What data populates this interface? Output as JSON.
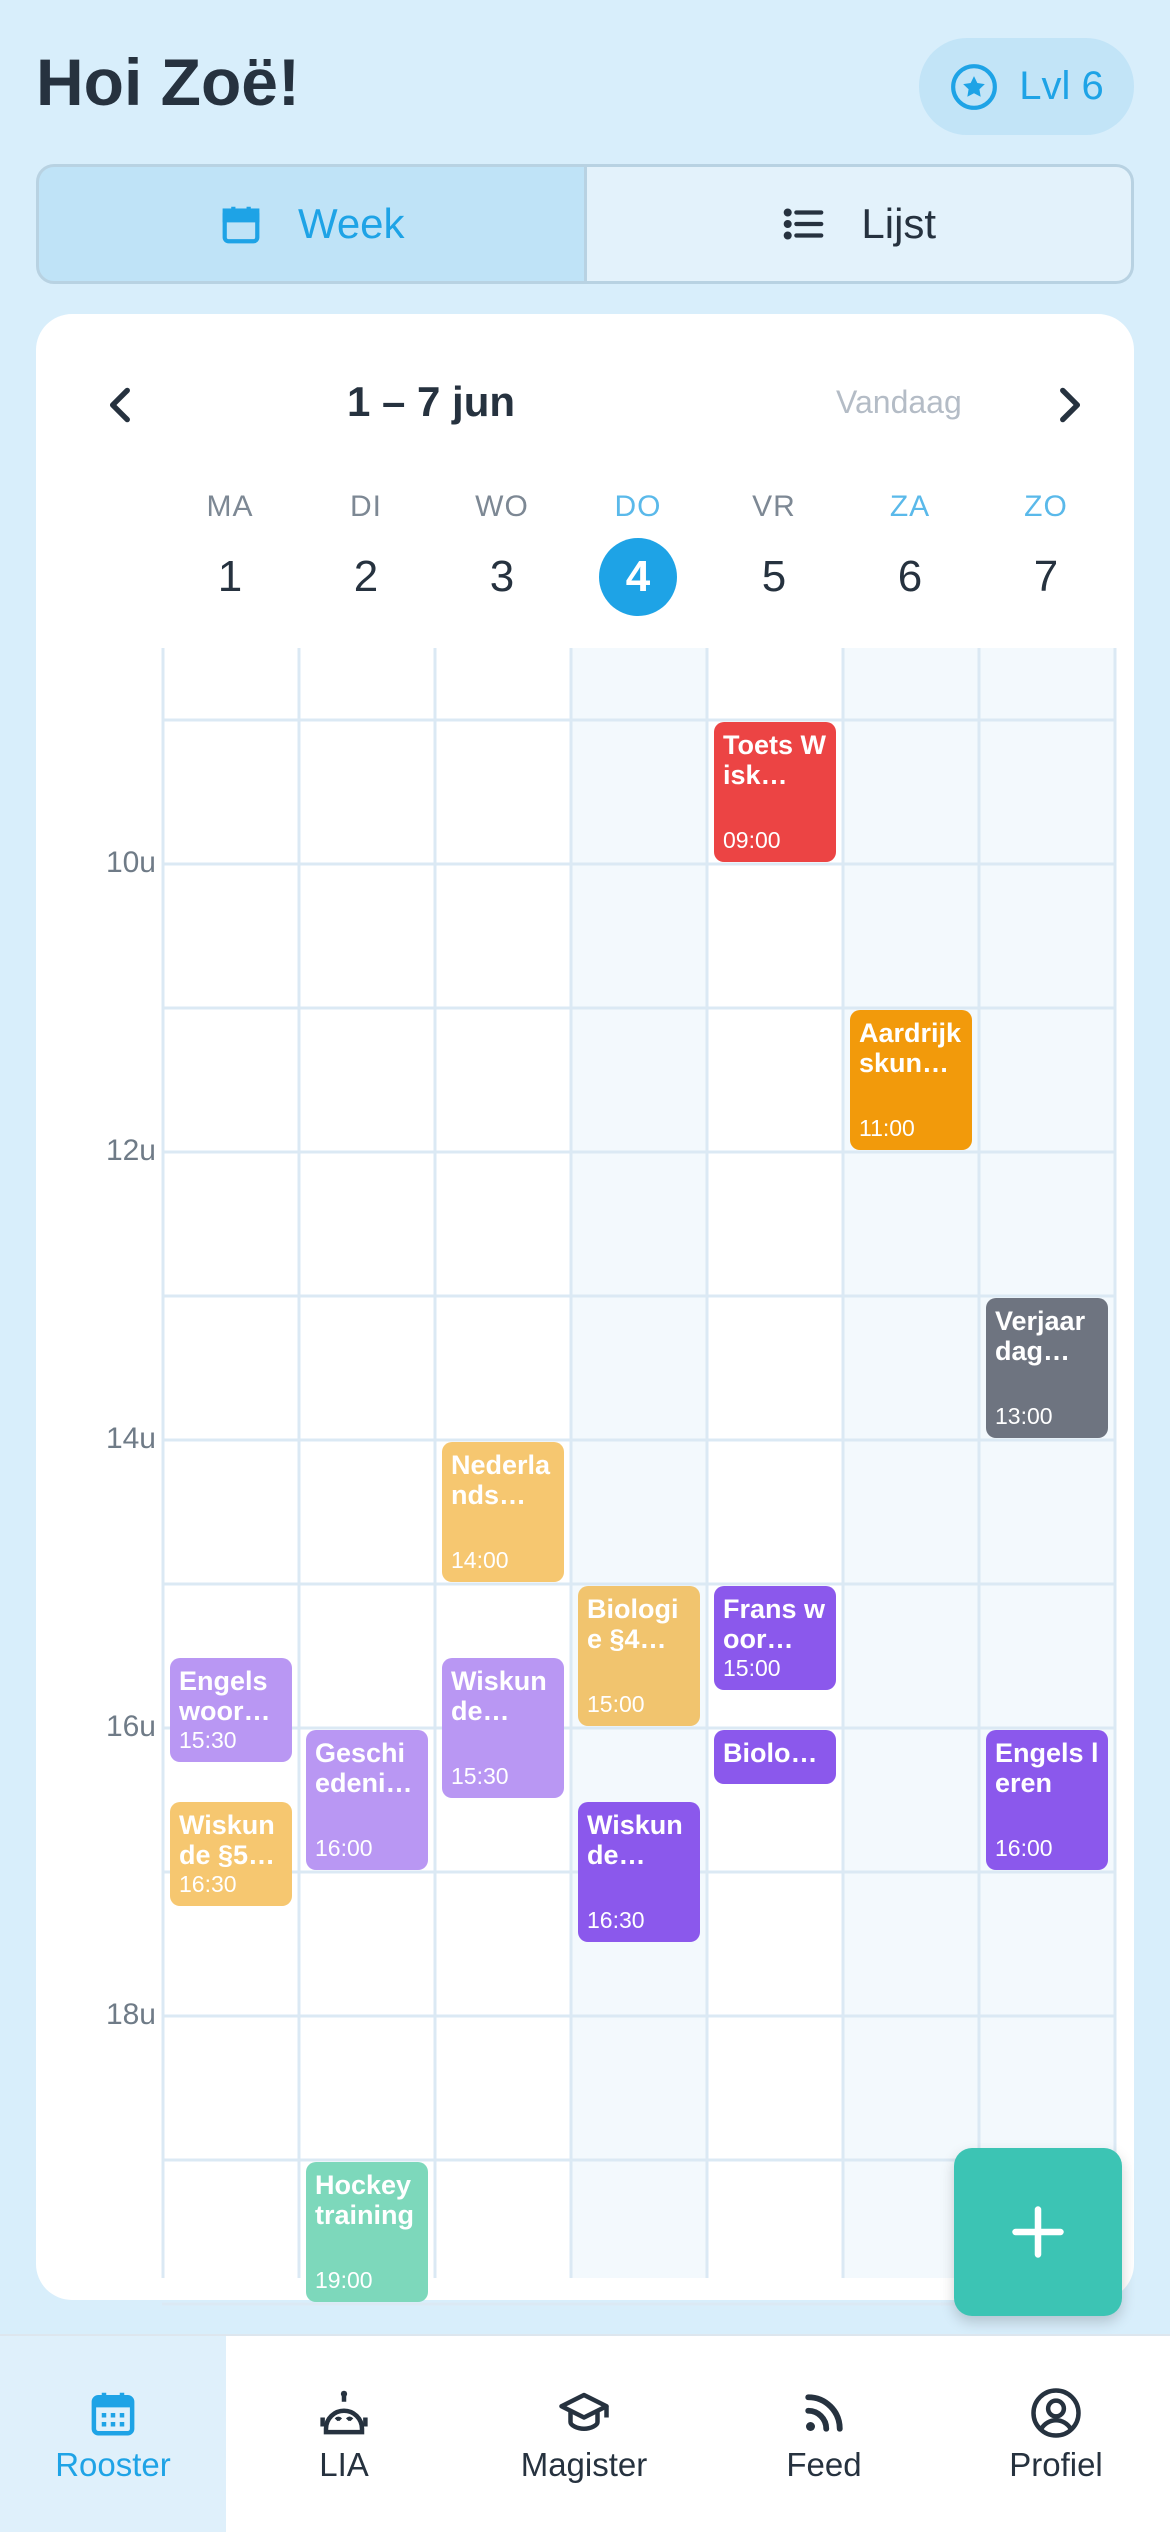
{
  "header": {
    "greeting": "Hoi Zoë!",
    "level_label": "Lvl 6",
    "level_icon": "star-circle-icon"
  },
  "view_toggle": {
    "week_label": "Week",
    "list_label": "Lijst",
    "active": "week"
  },
  "calendar": {
    "range_label": "1 – 7 jun",
    "today_label": "Vandaag",
    "days": [
      {
        "name": "MA",
        "num": "1",
        "weekend": false,
        "today": false
      },
      {
        "name": "DI",
        "num": "2",
        "weekend": false,
        "today": false
      },
      {
        "name": "WO",
        "num": "3",
        "weekend": false,
        "today": false
      },
      {
        "name": "DO",
        "num": "4",
        "weekend": false,
        "today": true
      },
      {
        "name": "VR",
        "num": "5",
        "weekend": false,
        "today": false
      },
      {
        "name": "ZA",
        "num": "6",
        "weekend": true,
        "today": false
      },
      {
        "name": "ZO",
        "num": "7",
        "weekend": true,
        "today": false
      }
    ],
    "hour_labels": [
      "10u",
      "12u",
      "14u",
      "16u",
      "18u"
    ],
    "events": [
      {
        "day": 4,
        "start": 9.0,
        "end": 10.0,
        "title": "Toets Wisk…",
        "time": "09:00",
        "color": "#ec4444"
      },
      {
        "day": 5,
        "start": 11.0,
        "end": 12.0,
        "title": "Aardrijkskun…",
        "time": "11:00",
        "color": "#f29a0b"
      },
      {
        "day": 6,
        "start": 13.0,
        "end": 14.0,
        "title": "Verjaardag…",
        "time": "13:00",
        "color": "#6e7480"
      },
      {
        "day": 2,
        "start": 14.0,
        "end": 15.0,
        "title": "Nederlands…",
        "time": "14:00",
        "color": "#f6c770"
      },
      {
        "day": 3,
        "start": 15.0,
        "end": 16.0,
        "title": "Biologie §4…",
        "time": "15:00",
        "color": "#f1c46e"
      },
      {
        "day": 4,
        "start": 15.0,
        "end": 15.75,
        "title": "Frans woor…",
        "time": "15:00",
        "color": "#8b58ec"
      },
      {
        "day": 0,
        "start": 15.5,
        "end": 16.25,
        "title": "Engels woor…",
        "time": "15:30",
        "color": "#b997f3"
      },
      {
        "day": 2,
        "start": 15.5,
        "end": 16.5,
        "title": "Wiskunde…",
        "time": "15:30",
        "color": "#b997f3"
      },
      {
        "day": 4,
        "start": 16.0,
        "end": 16.4,
        "title": "Biolo…",
        "time": "",
        "color": "#8b58ec"
      },
      {
        "day": 1,
        "start": 16.0,
        "end": 17.0,
        "title": "Geschiedeni…",
        "time": "16:00",
        "color": "#b997f3"
      },
      {
        "day": 6,
        "start": 16.0,
        "end": 17.0,
        "title": "Engels leren",
        "time": "16:00",
        "color": "#8b58ec"
      },
      {
        "day": 0,
        "start": 16.5,
        "end": 17.25,
        "title": "Wiskunde §5…",
        "time": "16:30",
        "color": "#f6c770"
      },
      {
        "day": 3,
        "start": 16.5,
        "end": 17.5,
        "title": "Wiskunde…",
        "time": "16:30",
        "color": "#8b58ec"
      },
      {
        "day": 1,
        "start": 19.0,
        "end": 20.0,
        "title": "Hockey training",
        "time": "19:00",
        "color": "#7dd8bb"
      }
    ]
  },
  "fab": {
    "icon": "plus-icon"
  },
  "tabbar": {
    "items": [
      {
        "label": "Rooster",
        "icon": "calendar-icon",
        "active": true
      },
      {
        "label": "LIA",
        "icon": "robot-icon",
        "active": false
      },
      {
        "label": "Magister",
        "icon": "graduation-cap-icon",
        "active": false
      },
      {
        "label": "Feed",
        "icon": "rss-icon",
        "active": false
      },
      {
        "label": "Profiel",
        "icon": "user-circle-icon",
        "active": false
      }
    ]
  },
  "colors": {
    "accent": "#1ea3e6",
    "background": "#d8eefb",
    "fab": "#3cc4b4"
  }
}
